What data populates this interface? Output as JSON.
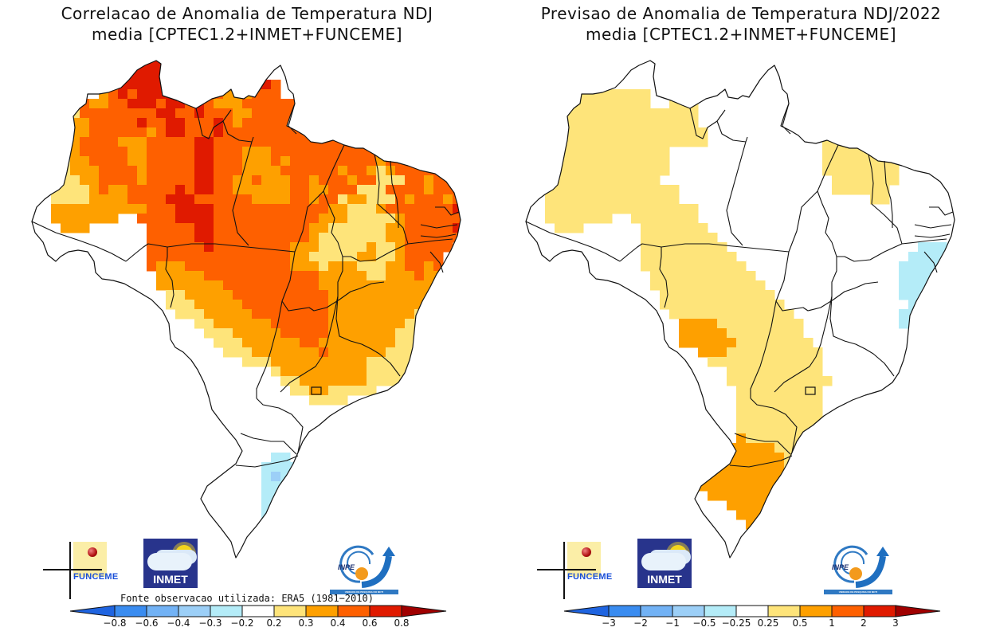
{
  "left": {
    "title_line1": "Correlacao de Anomalia de Temperatura NDJ",
    "title_line2": "media [CPTEC1.2+INMET+FUNCEME]",
    "source_note": "Fonte observacao utilizada: ERA5 (1981−2010)",
    "colorbar": {
      "tick_labels": [
        "−0.8",
        "−0.6",
        "−0.4",
        "−0.3",
        "−0.2",
        "0.2",
        "0.3",
        "0.4",
        "0.6",
        "0.8"
      ]
    }
  },
  "right": {
    "title_line1": "Previsao de Anomalia de Temperatura NDJ/2022",
    "title_line2": "media [CPTEC1.2+INMET+FUNCEME]",
    "colorbar": {
      "tick_labels": [
        "−3",
        "−2",
        "−1",
        "−0.5",
        "−0.25",
        "0.25",
        "0.5",
        "1",
        "2",
        "3"
      ]
    }
  },
  "logos": {
    "funceme": "FUNCEME",
    "inmet": "INMET",
    "inpe": "INPE",
    "inpe_band": "UNIDADE DE PESQUISA DO MCTI"
  },
  "palette": {
    "below_min": "#1f64e0",
    "c1": "#3a8cf0",
    "c2": "#72b2f5",
    "c3": "#9ccff7",
    "c4": "#b4ecf8",
    "neutral": "#ffffff",
    "c6": "#fee47a",
    "c7": "#fea000",
    "c8": "#fe6000",
    "c9": "#e01a00",
    "above_max": "#a00000"
  },
  "chart_data": [
    {
      "type": "heatmap",
      "title": "Correlacao de Anomalia de Temperatura NDJ media [CPTEC1.2+INMET+FUNCEME]",
      "region": "Brazil",
      "legend_placement": "bottom",
      "bins": [
        -0.8,
        -0.6,
        -0.4,
        -0.3,
        -0.2,
        0.2,
        0.3,
        0.4,
        0.6,
        0.8
      ],
      "summary": {
        "0.6 to 0.8": "Roraima, western Para, northern coast of Para/Maranhao/Ceara, parts of Mato Grosso",
        "0.4 to 0.6": "most of Amazonas, Para, Mato Grosso, Maranhao, Goias, Nordeste",
        "0.3 to 0.4": "western Amazonas, Acre, Rondonia edges, Minas Gerais, Bahia interior",
        "0.2 to 0.3": "southern Acre, Tocantins/Bahia border, south of Minas, Sao Paulo fringe",
        "-0.2 to 0.2": "Parana, Santa Catarina, most of Rio Grande do Sul, Mato Grosso do Sul west",
        "-0.3 to -0.2": "small area in Rio Grande do Sul",
        "-0.4 to -0.3": "single cell in Rio Grande do Sul"
      }
    },
    {
      "type": "heatmap",
      "title": "Previsao de Anomalia de Temperatura NDJ/2022 media [CPTEC1.2+INMET+FUNCEME]",
      "region": "Brazil",
      "legend_placement": "bottom",
      "bins": [
        -3,
        -2,
        -1,
        -0.5,
        -0.25,
        0.25,
        0.5,
        1,
        2,
        3
      ],
      "summary": {
        "0.5 to 1": "western Mato Grosso do Sul, western Rio Grande do Sul",
        "0.25 to 0.5": "Amazonas, Acre, Rondonia, western Mato Grosso, Maranhao, western Piaui, Mato Grosso do Sul, Parana, Sao Paulo west",
        "-0.25 to 0.25": "Para, Roraima, Amapa, Tocantins, Goias, Nordeste, Minas Gerais",
        "-0.5 to -0.25": "southern Bahia, Espirito Santo"
      }
    }
  ]
}
